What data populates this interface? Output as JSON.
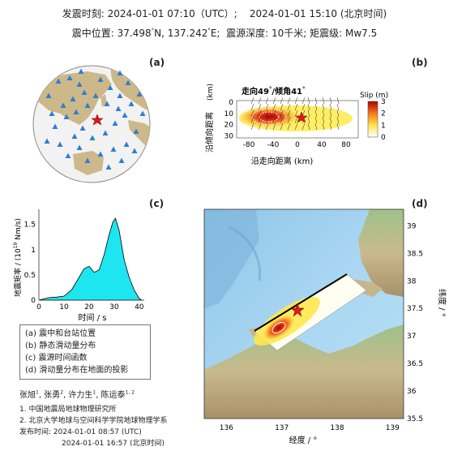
{
  "header": {
    "origin_time_label": "发震时刻:",
    "origin_time_utc": "2024-01-01 07:10（UTC）;",
    "origin_time_bj": "2024-01-01  15:10 (北京时间)",
    "location_label": "震中位置:",
    "lat": "37.498",
    "lat_suffix": "N,",
    "lon": "137.242",
    "lon_suffix": "E;",
    "depth_label": "震源深度:",
    "depth_value": "10千米;",
    "mag_label": "矩震级:",
    "mag_value": "Mw7.5"
  },
  "panels": {
    "a": {
      "label": "(a)"
    },
    "b": {
      "label": "(b)",
      "title_prefix": "走向",
      "strike": "49",
      "title_mid": "/倾角",
      "dip": "41",
      "ylabel": "沿倾向距离",
      "yunit": "(km)",
      "xlabel": "沿走向距离 (km)",
      "xticks": [
        "-80",
        "-40",
        "0",
        "40",
        "80"
      ],
      "yticks": [
        "0",
        "10",
        "20",
        "30"
      ],
      "colorbar_title": "Slip (m)",
      "colorbar_ticks": [
        "3",
        "2",
        "1",
        "0"
      ]
    },
    "c": {
      "label": "(c)",
      "ylabel": "地震矩率 / (10",
      "yexp": "19",
      "yunit": " Nm/s)",
      "xlabel": "时间 / s",
      "xticks": [
        "0",
        "10",
        "20",
        "30",
        "40"
      ],
      "yticks": [
        "0",
        "0.5",
        "1",
        "1.5"
      ]
    },
    "d": {
      "label": "(d)",
      "xlabel": "经度 / °",
      "ylabel": "纬度 / °",
      "xticks": [
        "136",
        "137",
        "138",
        "139"
      ],
      "yticks": [
        "39",
        "38.5",
        "38",
        "37.5",
        "37",
        "36.5",
        "36",
        "35.5"
      ]
    }
  },
  "legend": {
    "items": [
      "(a) 震中和台站位置",
      "(b) 静态滑动量分布",
      "(c) 震源时间函数",
      "(d) 滑动量分布在地面的投影"
    ]
  },
  "credits": {
    "authors": "张旭",
    "a1": "1",
    "author2": ", 张勇",
    "a2": "2",
    "author3": ", 许力生",
    "a3": "1",
    "author4": ", 陈运泰",
    "a4": "1, 2",
    "aff1": "1. 中国地震局地球物理研究所",
    "aff2": "2. 北京大学地球与空间科学学院地球物理学系",
    "release_label": "发布时间:",
    "release_utc": "2024-01-01  08:57 (UTC)",
    "release_bj": "2024-01-01  16:57 (北京时间)"
  },
  "colors": {
    "star": "#e4181b",
    "stations": "#2f7dd6",
    "stf_fill": "#1ee6f0",
    "land": "#cdb88a"
  }
}
